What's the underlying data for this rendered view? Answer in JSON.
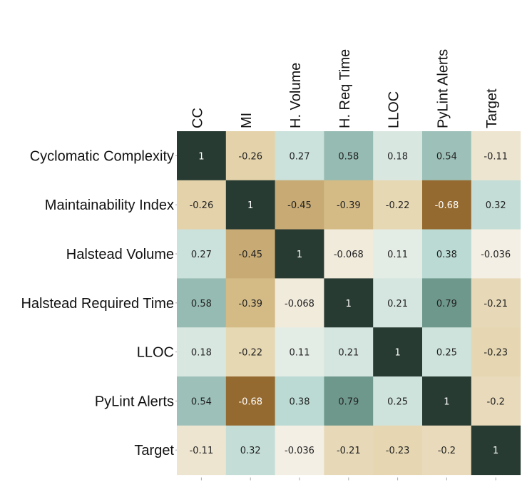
{
  "chart_data": {
    "type": "heatmap",
    "title": "",
    "row_labels": [
      "Cyclomatic Complexity",
      "Maintainability Index",
      "Halstead Volume",
      "Halstead Required Time",
      "LLOC",
      "PyLint Alerts",
      "Target"
    ],
    "column_labels": [
      "CC",
      "MI",
      "H. Volume",
      "H. Req Time",
      "LLOC",
      "PyLint Alerts",
      "Target"
    ],
    "values": [
      [
        1,
        -0.26,
        0.27,
        0.58,
        0.18,
        0.54,
        -0.11
      ],
      [
        -0.26,
        1,
        -0.45,
        -0.39,
        -0.22,
        -0.68,
        0.32
      ],
      [
        0.27,
        -0.45,
        1,
        -0.068,
        0.11,
        0.38,
        -0.036
      ],
      [
        0.58,
        -0.39,
        -0.068,
        1,
        0.21,
        0.79,
        -0.21
      ],
      [
        0.18,
        -0.22,
        0.11,
        0.21,
        1,
        0.25,
        -0.23
      ],
      [
        0.54,
        -0.68,
        0.38,
        0.79,
        0.25,
        1,
        -0.2
      ],
      [
        -0.11,
        0.32,
        -0.036,
        -0.21,
        -0.23,
        -0.2,
        1
      ]
    ],
    "value_labels": [
      [
        "1",
        "-0.26",
        "0.27",
        "0.58",
        "0.18",
        "0.54",
        "-0.11"
      ],
      [
        "-0.26",
        "1",
        "-0.45",
        "-0.39",
        "-0.22",
        "-0.68",
        "0.32"
      ],
      [
        "0.27",
        "-0.45",
        "1",
        "-0.068",
        "0.11",
        "0.38",
        "-0.036"
      ],
      [
        "0.58",
        "-0.39",
        "-0.068",
        "1",
        "0.21",
        "0.79",
        "-0.21"
      ],
      [
        "0.18",
        "-0.22",
        "0.11",
        "0.21",
        "1",
        "0.25",
        "-0.23"
      ],
      [
        "0.54",
        "-0.68",
        "0.38",
        "0.79",
        "0.25",
        "1",
        "-0.2"
      ],
      [
        "-0.11",
        "0.32",
        "-0.036",
        "-0.21",
        "-0.23",
        "-0.2",
        "1"
      ]
    ],
    "value_range": [
      -0.68,
      1
    ],
    "colormap": {
      "negative_strong": "#956a30",
      "negative_mid": "#dfc995",
      "neutral": "#f5f3ee",
      "positive_mid": "#b8d9d2",
      "positive_strong": "#6f988d",
      "diagonal": "#283b33"
    },
    "grid": false,
    "legend": "none"
  }
}
